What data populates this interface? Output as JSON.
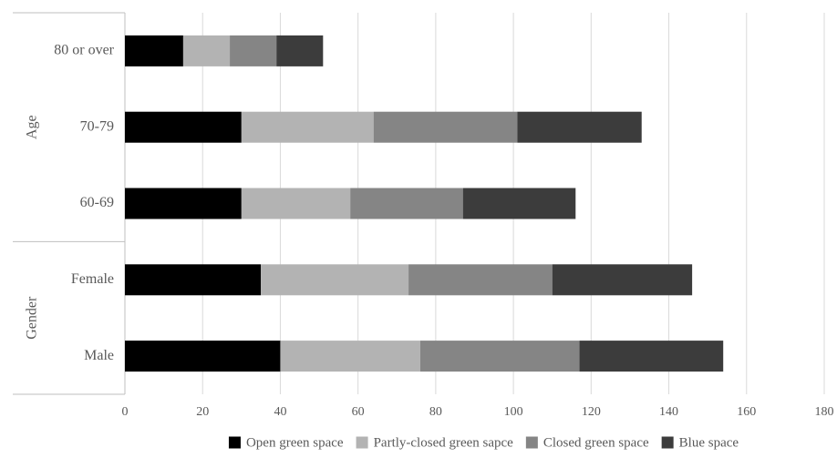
{
  "chart_data": {
    "type": "bar",
    "orientation": "horizontal",
    "stacked": true,
    "groups": [
      {
        "label": "Age",
        "categories": [
          "80 or over",
          "70-79",
          "60-69"
        ]
      },
      {
        "label": "Gender",
        "categories": [
          "Female",
          "Male"
        ]
      }
    ],
    "categories": [
      "80 or over",
      "70-79",
      "60-69",
      "Female",
      "Male"
    ],
    "series": [
      {
        "name": "Open green space",
        "color": "#000000",
        "values": [
          15,
          30,
          30,
          35,
          40
        ]
      },
      {
        "name": "Partly-closed green sapce",
        "color": "#b3b3b3",
        "values": [
          12,
          34,
          28,
          38,
          36
        ]
      },
      {
        "name": "Closed green space",
        "color": "#858585",
        "values": [
          12,
          37,
          29,
          37,
          41
        ]
      },
      {
        "name": "Blue space",
        "color": "#3c3c3c",
        "values": [
          12,
          32,
          29,
          36,
          37
        ]
      }
    ],
    "xlim": [
      0,
      180
    ],
    "xticks": [
      "0",
      "20",
      "40",
      "60",
      "80",
      "100",
      "120",
      "140",
      "160",
      "180"
    ],
    "grid": "vertical",
    "legend_position": "bottom"
  }
}
